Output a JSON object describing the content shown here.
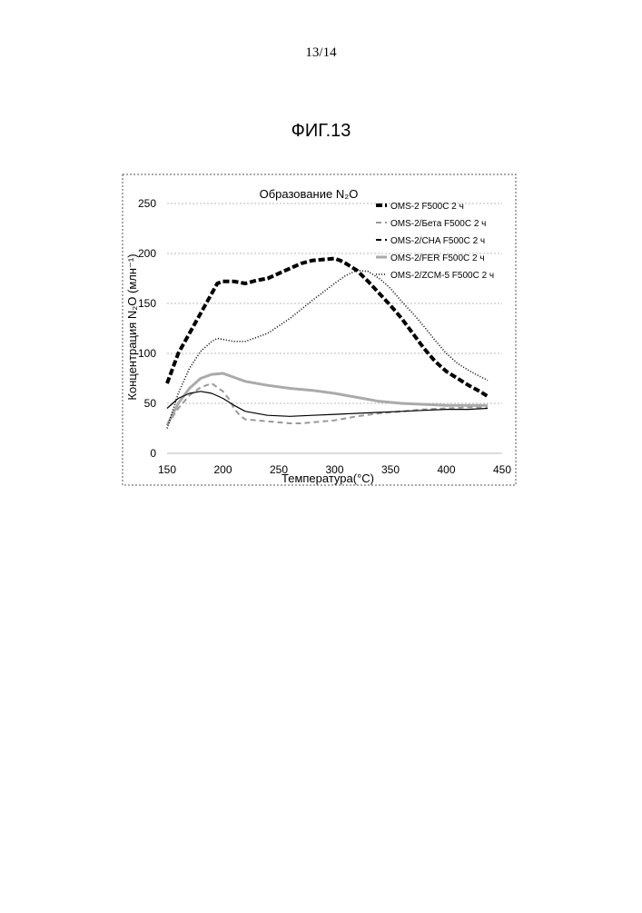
{
  "page": {
    "number": "13/14",
    "figure_title": "ФИГ.13"
  },
  "chart_data": {
    "type": "line",
    "title": "Образование N₂O",
    "xlabel": "Температура(°C)",
    "ylabel": "Концентрация N₂O (млн⁻¹)",
    "xlim": [
      150,
      450
    ],
    "ylim": [
      0,
      250
    ],
    "x_ticks": [
      150,
      200,
      250,
      300,
      350,
      400,
      450
    ],
    "y_ticks": [
      0,
      50,
      100,
      150,
      200,
      250
    ],
    "grid": "horizontal dashed",
    "legend_position": "top-right",
    "series": [
      {
        "name": "OMS-2 F500C 2 ч",
        "color": "#000000",
        "style": "bold-dashed",
        "x": [
          150,
          160,
          170,
          180,
          190,
          195,
          200,
          210,
          220,
          230,
          240,
          250,
          260,
          270,
          280,
          290,
          300,
          305,
          310,
          320,
          330,
          340,
          350,
          360,
          370,
          380,
          390,
          400,
          410,
          420,
          430,
          437
        ],
        "y": [
          70,
          100,
          120,
          140,
          160,
          170,
          172,
          172,
          170,
          173,
          175,
          180,
          185,
          190,
          193,
          194,
          195,
          193,
          190,
          183,
          172,
          160,
          148,
          135,
          120,
          105,
          92,
          82,
          75,
          68,
          62,
          57
        ]
      },
      {
        "name": "OMS-2/Бета F500C 2 ч",
        "color": "#999999",
        "style": "dashed",
        "x": [
          150,
          160,
          170,
          180,
          190,
          200,
          205,
          210,
          215,
          220,
          230,
          240,
          250,
          260,
          270,
          280,
          290,
          300,
          310,
          320,
          340,
          360,
          380,
          400,
          420,
          437
        ],
        "y": [
          28,
          45,
          58,
          66,
          70,
          62,
          55,
          45,
          38,
          34,
          33,
          32,
          31,
          30,
          30,
          31,
          32,
          33,
          35,
          37,
          40,
          42,
          44,
          45,
          46,
          46
        ]
      },
      {
        "name": "OMS-2/CHA F500C 2 ч",
        "color": "#000000",
        "style": "dashed",
        "x": [
          150,
          160,
          170,
          180,
          190,
          195,
          200,
          210,
          220,
          230,
          240,
          250,
          260,
          270,
          280,
          290,
          300,
          305,
          310,
          320,
          330,
          340,
          350,
          360,
          370,
          380,
          390,
          400,
          410,
          420,
          430,
          437
        ],
        "y": [
          70,
          100,
          120,
          140,
          160,
          170,
          172,
          172,
          170,
          173,
          175,
          180,
          185,
          190,
          193,
          194,
          195,
          193,
          190,
          183,
          172,
          160,
          148,
          135,
          120,
          105,
          92,
          82,
          75,
          68,
          62,
          57
        ]
      },
      {
        "name": "OMS-2/FER F500C 2 ч",
        "color": "#aaaaaa",
        "style": "solid-thick",
        "x": [
          150,
          160,
          170,
          180,
          190,
          200,
          210,
          220,
          240,
          260,
          280,
          300,
          320,
          340,
          360,
          380,
          400,
          420,
          437
        ],
        "y": [
          28,
          50,
          65,
          75,
          79,
          80,
          76,
          72,
          68,
          65,
          63,
          60,
          56,
          52,
          50,
          49,
          48,
          48,
          48
        ]
      },
      {
        "name": "OMS-2/ZCM-5 F500C 2 ч",
        "color": "#000000",
        "style": "dotted",
        "x": [
          150,
          160,
          170,
          180,
          190,
          195,
          200,
          210,
          220,
          240,
          260,
          280,
          300,
          310,
          320,
          330,
          340,
          350,
          360,
          370,
          380,
          390,
          400,
          410,
          420,
          430,
          437
        ],
        "y": [
          25,
          60,
          85,
          102,
          112,
          115,
          114,
          112,
          112,
          120,
          135,
          153,
          170,
          178,
          183,
          182,
          175,
          165,
          152,
          140,
          127,
          113,
          100,
          90,
          83,
          77,
          73
        ]
      },
      {
        "name": "",
        "color": "#000000",
        "style": "thin",
        "x": [
          150,
          160,
          170,
          180,
          190,
          200,
          210,
          220,
          240,
          260,
          280,
          300,
          320,
          340,
          360,
          380,
          400,
          420,
          437
        ],
        "y": [
          45,
          55,
          60,
          62,
          60,
          55,
          48,
          42,
          38,
          37,
          38,
          39,
          40,
          41,
          42,
          43,
          44,
          44,
          45
        ]
      }
    ]
  }
}
